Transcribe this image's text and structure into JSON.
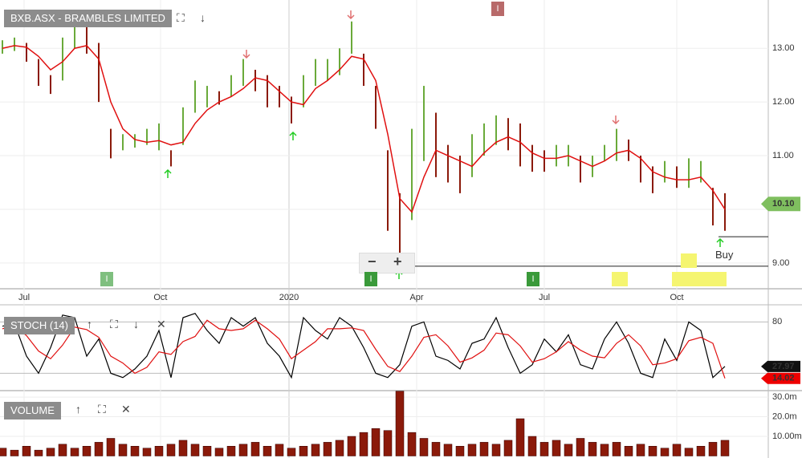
{
  "chart_data": [
    {
      "type": "ohlc",
      "title": "BXB.ASX - BRAMBLES LIMITED",
      "xlim": [
        -0.2,
        63.6
      ],
      "xticks": [
        {
          "value": 1.8,
          "label": "Jul"
        },
        {
          "value": 13.13,
          "label": "Oct"
        },
        {
          "value": 23.8,
          "label": "2020"
        },
        {
          "value": 34.4,
          "label": "Apr"
        },
        {
          "value": 45,
          "label": "Jul"
        },
        {
          "value": 56,
          "label": "Oct"
        }
      ],
      "ylim": [
        8.52,
        13.9
      ],
      "yticks": [
        {
          "value": 9,
          "label": "9.00"
        },
        {
          "value": 11,
          "label": "11.00"
        },
        {
          "value": 12,
          "label": "12.00"
        },
        {
          "value": 13,
          "label": "13.00"
        }
      ],
      "grid_levels": [
        9,
        10,
        11,
        12,
        13
      ],
      "high": [
        13.15,
        13.2,
        13.1,
        12.8,
        12.5,
        13.2,
        13.7,
        13.4,
        13.1,
        11.5,
        11.4,
        11.4,
        11.5,
        11.6,
        11.1,
        11.9,
        12.4,
        12.3,
        12.2,
        12.5,
        12.8,
        12.6,
        12.5,
        12.3,
        12.1,
        12.5,
        12.8,
        12.8,
        13.0,
        13.5,
        12.9,
        12.3,
        11.1,
        10.3,
        11.5,
        12.3,
        11.8,
        11.2,
        11.0,
        11.4,
        11.6,
        11.75,
        11.7,
        11.6,
        11.2,
        11.1,
        11.2,
        11.2,
        11.0,
        11.0,
        11.2,
        11.5,
        11.3,
        11.0,
        10.8,
        10.9,
        10.8,
        10.95,
        10.9,
        10.4,
        10.3
      ],
      "low": [
        12.9,
        12.95,
        12.75,
        12.3,
        12.15,
        12.4,
        13.0,
        12.9,
        12.0,
        10.95,
        11.1,
        11.15,
        11.2,
        11.1,
        10.8,
        11.2,
        11.8,
        11.9,
        11.95,
        12.1,
        12.3,
        12.2,
        11.9,
        11.9,
        11.6,
        11.9,
        12.3,
        12.4,
        12.5,
        12.9,
        12.3,
        11.5,
        9.6,
        9.1,
        9.8,
        10.9,
        10.6,
        10.5,
        10.3,
        10.6,
        11.0,
        11.2,
        11.1,
        10.8,
        10.7,
        10.7,
        10.8,
        10.8,
        10.5,
        10.6,
        10.9,
        10.9,
        10.9,
        10.5,
        10.3,
        10.5,
        10.4,
        10.4,
        10.5,
        9.7,
        9.6
      ],
      "ma": {
        "color": "#e01010",
        "values": [
          13.0,
          13.05,
          13.02,
          12.85,
          12.6,
          12.75,
          13.0,
          13.05,
          12.8,
          12.0,
          11.5,
          11.3,
          11.25,
          11.28,
          11.2,
          11.25,
          11.6,
          11.85,
          12.0,
          12.1,
          12.25,
          12.45,
          12.4,
          12.2,
          12.0,
          11.95,
          12.25,
          12.4,
          12.6,
          12.85,
          12.8,
          12.4,
          11.4,
          10.2,
          9.95,
          10.6,
          11.1,
          11.0,
          10.9,
          10.8,
          11.05,
          11.25,
          11.35,
          11.25,
          11.05,
          10.95,
          10.95,
          11.0,
          10.9,
          10.8,
          10.9,
          11.05,
          11.1,
          10.95,
          10.7,
          10.6,
          10.55,
          10.55,
          10.6,
          10.35,
          10.0
        ]
      },
      "last_price": {
        "value": 10.1,
        "label": "10.10"
      },
      "levels": [
        9.49,
        8.94
      ],
      "annotation": "Buy",
      "badges": [
        "I",
        "I",
        "I",
        "I"
      ]
    },
    {
      "type": "line",
      "title": "STOCH (14)",
      "ylim": [
        0,
        100
      ],
      "yticks": [
        80
      ],
      "grid_levels": [
        20,
        80
      ],
      "series": [
        {
          "color": "#000000",
          "values": [
            75,
            78,
            40,
            20,
            50,
            88,
            85,
            40,
            60,
            20,
            15,
            25,
            40,
            70,
            15,
            85,
            90,
            70,
            55,
            85,
            75,
            85,
            55,
            40,
            15,
            85,
            70,
            60,
            85,
            75,
            50,
            20,
            15,
            30,
            75,
            80,
            40,
            35,
            25,
            55,
            60,
            85,
            50,
            20,
            30,
            60,
            45,
            65,
            30,
            25,
            60,
            80,
            55,
            20,
            15,
            60,
            35,
            80,
            70,
            15,
            27.97
          ]
        },
        {
          "color": "#e01010",
          "values": [
            72,
            76,
            64,
            46,
            37,
            53,
            74,
            71,
            62,
            40,
            32,
            20,
            27,
            45,
            42,
            57,
            63,
            82,
            72,
            70,
            72,
            82,
            72,
            60,
            37,
            47,
            57,
            72,
            72,
            73,
            70,
            48,
            28,
            22,
            40,
            62,
            65,
            52,
            33,
            38,
            47,
            67,
            65,
            52,
            33,
            37,
            45,
            57,
            47,
            40,
            38,
            55,
            65,
            52,
            30,
            32,
            37,
            58,
            62,
            55,
            14.02
          ]
        }
      ]
    },
    {
      "type": "bar",
      "title": "VOLUME",
      "ylim": [
        0,
        33.3
      ],
      "yticks": [
        {
          "value": 10,
          "label": "10.00m"
        },
        {
          "value": 20,
          "label": "20.0m"
        },
        {
          "value": 30,
          "label": "30.0m"
        }
      ],
      "color": "#8b1a0a",
      "values": [
        4,
        3,
        5,
        3,
        4,
        6,
        4,
        5,
        7,
        9,
        6,
        5,
        4,
        5,
        6,
        8,
        6,
        5,
        4,
        5,
        6,
        7,
        5,
        6,
        4,
        5,
        6,
        7,
        8,
        10,
        12,
        14,
        13,
        33,
        12,
        9,
        7,
        6,
        5,
        6,
        7,
        6,
        8,
        19,
        10,
        7,
        8,
        6,
        9,
        7,
        6,
        7,
        5,
        6,
        5,
        4,
        6,
        4,
        5,
        7,
        8
      ]
    }
  ]
}
